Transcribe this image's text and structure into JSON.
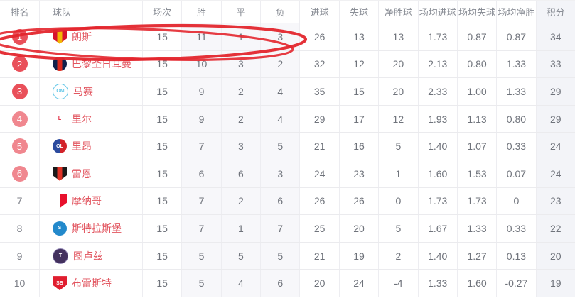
{
  "accent_colors": {
    "badge_top3": "#e9505a",
    "badge_mid": "#f0878f",
    "team_name": "#e25660",
    "header_text": "#8a8e96",
    "cell_text": "#6f737b",
    "col_shade": "#f7f7fa",
    "points_shade": "#f3f4f8",
    "grid_line": "#ededf1"
  },
  "annotation": {
    "type": "hand-drawn-ellipse-highlight",
    "target_row_rank": "1",
    "color": "#e3262d"
  },
  "table": {
    "columns": [
      {
        "key": "rank",
        "label": "排名"
      },
      {
        "key": "team",
        "label": "球队"
      },
      {
        "key": "played",
        "label": "场次"
      },
      {
        "key": "wins",
        "label": "胜"
      },
      {
        "key": "draws",
        "label": "平"
      },
      {
        "key": "losses",
        "label": "负"
      },
      {
        "key": "goals_for",
        "label": "进球"
      },
      {
        "key": "goals_against",
        "label": "失球"
      },
      {
        "key": "goal_diff",
        "label": "净胜球"
      },
      {
        "key": "avg_goals_for",
        "label": "场均进球"
      },
      {
        "key": "avg_goals_against",
        "label": "场均失球"
      },
      {
        "key": "avg_goal_diff",
        "label": "场均净胜"
      },
      {
        "key": "points",
        "label": "积分"
      }
    ],
    "rows": [
      {
        "rank": "1",
        "badge": "top3",
        "team": "朗斯",
        "highlighted": true,
        "logo": {
          "shape": "shield",
          "colors": [
            "#d6112d",
            "#f2b705",
            "#d6112d"
          ],
          "label": ""
        },
        "played": "15",
        "wins": "11",
        "draws": "1",
        "losses": "3",
        "goals_for": "26",
        "goals_against": "13",
        "goal_diff": "13",
        "avg_goals_for": "1.73",
        "avg_goals_against": "0.87",
        "avg_goal_diff": "0.87",
        "points": "34"
      },
      {
        "rank": "2",
        "badge": "top3",
        "team": "巴黎圣日耳曼",
        "highlighted": false,
        "logo": {
          "shape": "circle",
          "colors": [
            "#10214b",
            "#da291c",
            "#10214b"
          ],
          "label": ""
        },
        "played": "15",
        "wins": "10",
        "draws": "3",
        "losses": "2",
        "goals_for": "32",
        "goals_against": "12",
        "goal_diff": "20",
        "avg_goals_for": "2.13",
        "avg_goals_against": "0.80",
        "avg_goal_diff": "1.33",
        "points": "33"
      },
      {
        "rank": "3",
        "badge": "top3",
        "team": "马赛",
        "highlighted": false,
        "logo": {
          "shape": "circle",
          "colors": [
            "#ffffff"
          ],
          "label": "OM",
          "label_color": "#64c7e8",
          "border": "#64c7e8"
        },
        "played": "15",
        "wins": "9",
        "draws": "2",
        "losses": "4",
        "goals_for": "35",
        "goals_against": "15",
        "goal_diff": "20",
        "avg_goals_for": "2.33",
        "avg_goals_against": "1.00",
        "avg_goal_diff": "1.33",
        "points": "29"
      },
      {
        "rank": "4",
        "badge": "mid",
        "team": "里尔",
        "highlighted": false,
        "logo": {
          "shape": "pentagon",
          "colors": [
            "#ffffff"
          ],
          "label": "L",
          "label_color": "#e01e37",
          "border": "#20264d"
        },
        "played": "15",
        "wins": "9",
        "draws": "2",
        "losses": "4",
        "goals_for": "29",
        "goals_against": "17",
        "goal_diff": "12",
        "avg_goals_for": "1.93",
        "avg_goals_against": "1.13",
        "avg_goal_diff": "0.80",
        "points": "29"
      },
      {
        "rank": "5",
        "badge": "mid",
        "team": "里昂",
        "highlighted": false,
        "logo": {
          "shape": "circle",
          "colors": [
            "#2b4a9e",
            "#d2232a"
          ],
          "label": "OL",
          "label_color": "#ffffff"
        },
        "played": "15",
        "wins": "7",
        "draws": "3",
        "losses": "5",
        "goals_for": "21",
        "goals_against": "16",
        "goal_diff": "5",
        "avg_goals_for": "1.40",
        "avg_goals_against": "1.07",
        "avg_goal_diff": "0.33",
        "points": "24"
      },
      {
        "rank": "6",
        "badge": "mid",
        "team": "雷恩",
        "highlighted": false,
        "logo": {
          "shape": "shield",
          "colors": [
            "#1a1a1a",
            "#e13327",
            "#1a1a1a"
          ],
          "label": ""
        },
        "played": "15",
        "wins": "6",
        "draws": "6",
        "losses": "3",
        "goals_for": "24",
        "goals_against": "23",
        "goal_diff": "1",
        "avg_goals_for": "1.60",
        "avg_goals_against": "1.53",
        "avg_goal_diff": "0.07",
        "points": "24"
      },
      {
        "rank": "7",
        "badge": "none",
        "team": "摩纳哥",
        "highlighted": false,
        "logo": {
          "shape": "shield",
          "colors": [
            "#ffffff",
            "#e8112d"
          ],
          "label": "",
          "border": "#c9a227"
        },
        "played": "15",
        "wins": "7",
        "draws": "2",
        "losses": "6",
        "goals_for": "26",
        "goals_against": "26",
        "goal_diff": "0",
        "avg_goals_for": "1.73",
        "avg_goals_against": "1.73",
        "avg_goal_diff": "0",
        "points": "23"
      },
      {
        "rank": "8",
        "badge": "none",
        "team": "斯特拉斯堡",
        "highlighted": false,
        "logo": {
          "shape": "circle",
          "colors": [
            "#2389cb"
          ],
          "label": "S",
          "label_color": "#ffffff"
        },
        "played": "15",
        "wins": "7",
        "draws": "1",
        "losses": "7",
        "goals_for": "25",
        "goals_against": "20",
        "goal_diff": "5",
        "avg_goals_for": "1.67",
        "avg_goals_against": "1.33",
        "avg_goal_diff": "0.33",
        "points": "22"
      },
      {
        "rank": "9",
        "badge": "none",
        "team": "图卢兹",
        "highlighted": false,
        "logo": {
          "shape": "circle",
          "colors": [
            "#43315e"
          ],
          "label": "T",
          "label_color": "#ffffff",
          "border": "#9286b5"
        },
        "played": "15",
        "wins": "5",
        "draws": "5",
        "losses": "5",
        "goals_for": "21",
        "goals_against": "19",
        "goal_diff": "2",
        "avg_goals_for": "1.40",
        "avg_goals_against": "1.27",
        "avg_goal_diff": "0.13",
        "points": "20"
      },
      {
        "rank": "10",
        "badge": "none",
        "team": "布雷斯特",
        "highlighted": false,
        "logo": {
          "shape": "shield",
          "colors": [
            "#e01e2f"
          ],
          "label": "SB",
          "label_color": "#ffffff"
        },
        "played": "15",
        "wins": "5",
        "draws": "4",
        "losses": "6",
        "goals_for": "20",
        "goals_against": "24",
        "goal_diff": "-4",
        "avg_goals_for": "1.33",
        "avg_goals_against": "1.60",
        "avg_goal_diff": "-0.27",
        "points": "19"
      }
    ]
  }
}
